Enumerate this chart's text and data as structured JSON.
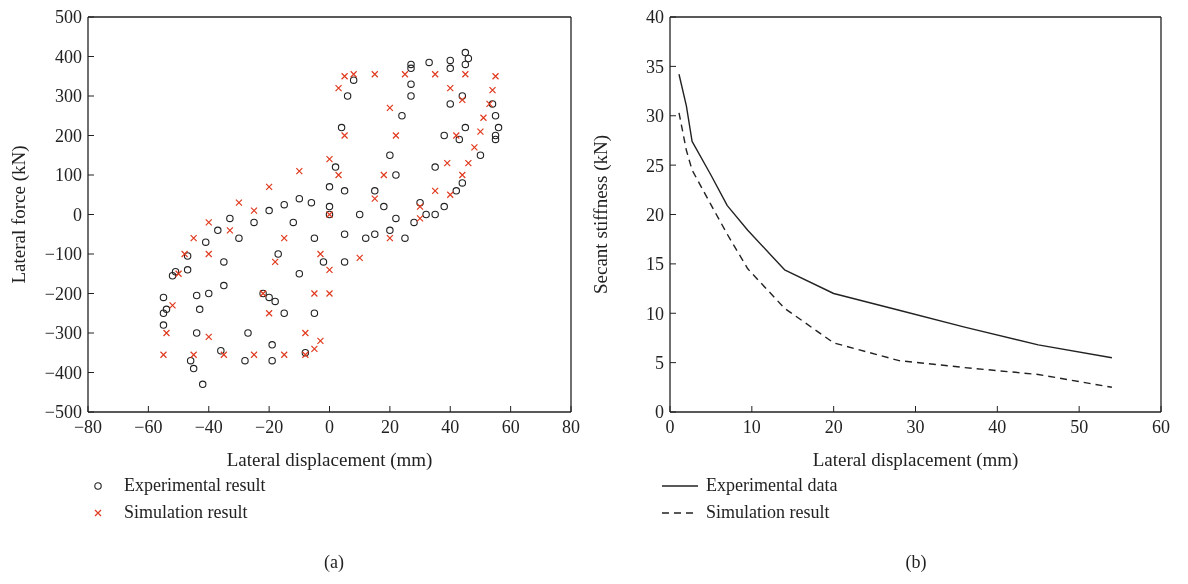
{
  "chart_data": [
    {
      "type": "scatter",
      "xlabel": "Lateral displacement (mm)",
      "ylabel": "Lateral force (kN)",
      "xlim": [
        -80,
        80
      ],
      "xticks": [
        -80,
        -60,
        -40,
        -20,
        0,
        20,
        40,
        60,
        80
      ],
      "ylim": [
        -500,
        500
      ],
      "yticks": [
        -500,
        -400,
        -300,
        -200,
        -100,
        0,
        100,
        200,
        300,
        400,
        500
      ],
      "legend": "bottom",
      "annotations": [
        "(a)"
      ],
      "series": [
        {
          "name": "Experimental result",
          "color": "#222222",
          "marker": "circle",
          "x": [
            -8,
            -5,
            -2,
            0,
            2,
            4,
            6,
            8,
            5,
            10,
            15,
            20,
            24,
            27,
            27,
            27,
            27,
            22,
            18,
            12,
            5,
            15,
            22,
            30,
            35,
            38,
            40,
            40,
            40,
            35,
            28,
            20,
            25,
            32,
            38,
            42,
            44,
            44,
            45,
            45,
            46,
            33,
            50,
            54,
            55,
            55,
            55,
            56,
            43,
            45,
            -19,
            -19,
            -15,
            -10,
            -5,
            0,
            5,
            -28,
            -27,
            -22,
            -17,
            -12,
            -6,
            0,
            -45,
            -46,
            -44,
            -40,
            -35,
            -30,
            -25,
            -20,
            -15,
            -10,
            -41,
            -37,
            -33,
            -55,
            -55,
            -55,
            -54,
            -52,
            -51,
            -47,
            -47,
            -44,
            -43,
            -42,
            -36,
            -35,
            -20,
            -18
          ],
          "values": [
            -350,
            -250,
            -120,
            0,
            120,
            220,
            300,
            340,
            -50,
            0,
            60,
            150,
            250,
            330,
            370,
            380,
            300,
            100,
            20,
            -60,
            -120,
            -50,
            -10,
            30,
            120,
            200,
            280,
            370,
            390,
            0,
            -20,
            -40,
            -60,
            0,
            20,
            60,
            80,
            300,
            380,
            410,
            395,
            385,
            150,
            280,
            250,
            200,
            190,
            220,
            190,
            220,
            -370,
            -330,
            -250,
            -150,
            -60,
            20,
            60,
            -370,
            -300,
            -200,
            -100,
            -20,
            30,
            70,
            -390,
            -370,
            -300,
            -200,
            -120,
            -60,
            -20,
            10,
            25,
            40,
            -70,
            -40,
            -10,
            -210,
            -250,
            -280,
            -240,
            -155,
            -145,
            -105,
            -140,
            -205,
            -240,
            -430,
            -345,
            -180,
            -210,
            -220
          ]
        },
        {
          "name": "Simulation result",
          "color": "#e03a1e",
          "marker": "cross",
          "x": [
            3,
            5,
            8,
            15,
            25,
            35,
            45,
            55,
            -55,
            -45,
            -35,
            -25,
            -15,
            -8,
            -5,
            -3,
            -54,
            -52,
            -50,
            -48,
            -45,
            -40,
            -30,
            -20,
            -10,
            0,
            5,
            54,
            53,
            51,
            50,
            48,
            46,
            44,
            40,
            30,
            20,
            10,
            0,
            -5,
            -8,
            -40,
            -33,
            -25,
            -40,
            -20,
            0,
            20,
            40,
            44,
            42,
            39,
            35,
            30,
            22,
            18,
            15,
            -22,
            -18,
            -15,
            -3,
            0,
            3
          ],
          "values": [
            320,
            350,
            355,
            355,
            355,
            355,
            355,
            350,
            -355,
            -355,
            -355,
            -355,
            -355,
            -355,
            -340,
            -320,
            -300,
            -230,
            -150,
            -100,
            -60,
            -20,
            30,
            70,
            110,
            140,
            200,
            315,
            280,
            245,
            210,
            170,
            130,
            100,
            50,
            -10,
            -60,
            -110,
            -140,
            -200,
            -300,
            -100,
            -40,
            10,
            -310,
            -250,
            -200,
            270,
            320,
            290,
            200,
            130,
            60,
            20,
            200,
            100,
            40,
            -200,
            -120,
            -60,
            -100,
            0,
            100
          ]
        }
      ]
    },
    {
      "type": "line",
      "xlabel": "Lateral displacement (mm)",
      "ylabel": "Secant stiffness (kN)",
      "xlim": [
        0,
        60
      ],
      "xticks": [
        0,
        10,
        20,
        30,
        40,
        50,
        60
      ],
      "ylim": [
        0,
        40
      ],
      "yticks": [
        0,
        5,
        10,
        15,
        20,
        25,
        30,
        35,
        40
      ],
      "legend": "bottom",
      "annotations": [
        "(b)"
      ],
      "series": [
        {
          "name": "Experimental data",
          "color": "#222222",
          "line_style": "solid",
          "x": [
            1.1,
            2,
            2.7,
            5,
            7,
            9.5,
            14,
            20,
            28,
            36,
            45,
            54
          ],
          "values": [
            34.2,
            31,
            27.4,
            24,
            20.9,
            18.4,
            14.4,
            12,
            10.3,
            8.6,
            6.8,
            5.5
          ]
        },
        {
          "name": "Simulation result",
          "color": "#222222",
          "line_style": "dashed",
          "x": [
            1.1,
            2,
            2.7,
            5,
            7,
            9.5,
            14,
            20,
            28,
            36,
            45,
            54
          ],
          "values": [
            30.3,
            26.5,
            24.5,
            21,
            18,
            14.5,
            10.5,
            7,
            5.2,
            4.5,
            3.8,
            2.5
          ]
        }
      ]
    }
  ]
}
